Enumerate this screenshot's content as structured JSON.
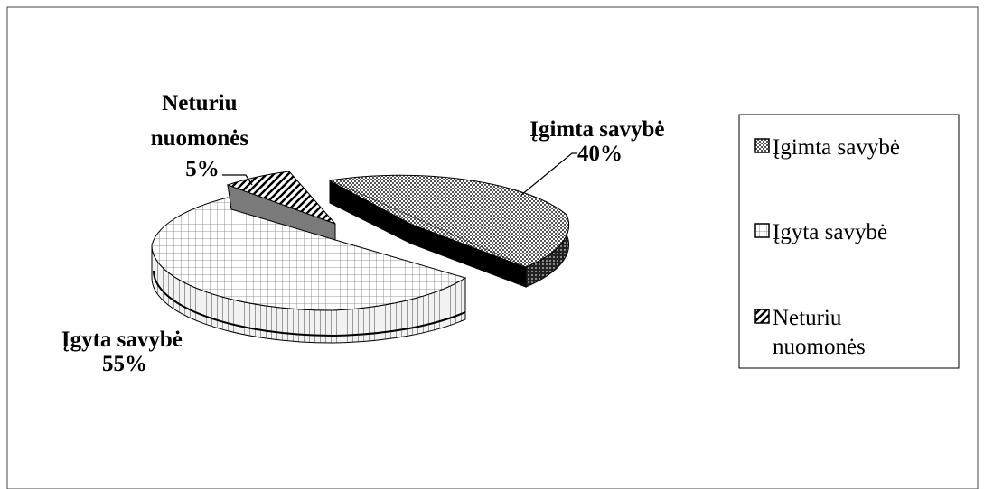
{
  "chart_data": {
    "type": "pie",
    "categories": [
      "Įgimta savybė",
      "Įgyta savybė",
      "Neturiu nuomonės"
    ],
    "values": [
      40,
      55,
      5
    ],
    "data_labels": [
      {
        "lines": [
          "Įgimta savybė",
          "40%"
        ]
      },
      {
        "lines": [
          "Įgyta savybė",
          "55%"
        ]
      },
      {
        "lines": [
          "Neturiu",
          "nuomonės",
          "5%"
        ]
      }
    ],
    "legend": {
      "position": "right",
      "entries": [
        {
          "lines": [
            "Įgimta savybė"
          ]
        },
        {
          "lines": [
            "Įgyta savybė"
          ]
        },
        {
          "lines": [
            "Neturiu",
            "nuomonės"
          ]
        }
      ]
    },
    "style": "3d-exploded-pie",
    "patterns": [
      "dotted-dark",
      "grid-light",
      "diagonal-stripes"
    ]
  }
}
